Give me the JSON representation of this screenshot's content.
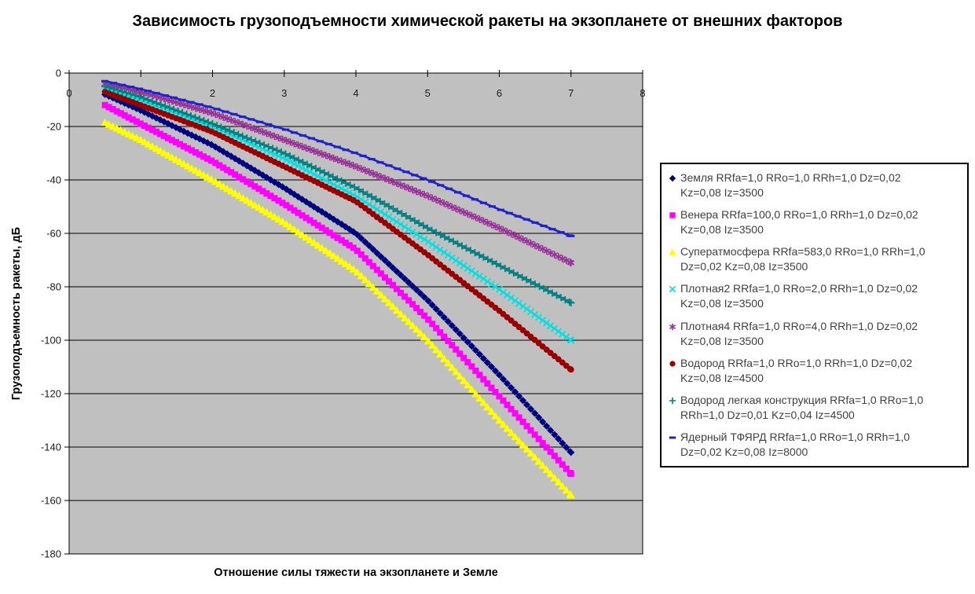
{
  "chart_data": {
    "type": "line",
    "title": "Зависимость грузоподъемности химической ракеты на экзопланете от внешних факторов",
    "xlabel": "Отношение силы тяжести на экзопланете и Земле",
    "ylabel": "Грузоподъемность ракеты, дБ",
    "xlim": [
      0,
      8
    ],
    "ylim": [
      -180,
      0
    ],
    "xticks": [
      0,
      1,
      2,
      3,
      4,
      5,
      6,
      7,
      8
    ],
    "yticks": [
      0,
      -20,
      -40,
      -60,
      -80,
      -100,
      -120,
      -140,
      -160,
      -180
    ],
    "grid": "horizontal",
    "plot_bg": "#c0c0c0",
    "legend_position": "right",
    "x": [
      0.5,
      1,
      2,
      3,
      4,
      5,
      6,
      7
    ],
    "series": [
      {
        "name": "Земля RRfa=1,0 RRo=1,0 RRh=1,0 Dz=0,02 Kz=0,08 Iz=3500",
        "lines": [
          "Земля RRfa=1,0 RRo=1,0 RRh=1,0 Dz=0,02",
          "Kz=0,08 Iz=3500"
        ],
        "color": "#000080",
        "marker": "diamond",
        "marker_step": 0.055,
        "values": [
          -8,
          -14,
          -27,
          -43,
          -60,
          -85,
          -113,
          -142
        ]
      },
      {
        "name": "Венера RRfa=100,0 RRo=1,0 RRh=1,0 Dz=0,02 Kz=0,08 Iz=3500",
        "lines": [
          "Венера RRfa=100,0 RRo=1,0 RRh=1,0 Dz=0,02",
          "Kz=0,08 Iz=3500"
        ],
        "color": "#ff00ff",
        "marker": "square",
        "marker_step": 0.055,
        "values": [
          -12,
          -19,
          -33,
          -49,
          -66,
          -92,
          -121,
          -150
        ]
      },
      {
        "name": "Суператмосфера RRfa=583,0 RRo=1,0 RRh=1,0 Dz=0,02 Kz=0,08 Iz=3500",
        "lines": [
          "Суператмосфера RRfa=583,0 RRo=1,0 RRh=1,0",
          "Dz=0,02 Kz=0,08 Iz=3500"
        ],
        "color": "#ffff00",
        "marker": "triangle",
        "marker_step": 0.055,
        "values": [
          -18.5,
          -25,
          -40,
          -56,
          -74,
          -100,
          -130,
          -158
        ]
      },
      {
        "name": "Плотная2 RRfa=1,0 RRo=2,0 RRh=1,0 Dz=0,02 Kz=0,08 Iz=3500",
        "lines": [
          "Плотная2 RRfa=1,0 RRo=2,0 RRh=1,0 Dz=0,02",
          "Kz=0,08 Iz=3500"
        ],
        "color": "#00e0e0",
        "marker": "x",
        "marker_step": 0.055,
        "values": [
          -6,
          -10,
          -20,
          -32,
          -46,
          -63,
          -81,
          -100
        ]
      },
      {
        "name": "Плотная4 RRfa=1,0 RRo=4,0 RRh=1,0 Dz=0,02 Kz=0,08 Iz=3500",
        "lines": [
          "Плотная4 RRfa=1,0 RRo=4,0 RRh=1,0 Dz=0,02",
          "Kz=0,08 Iz=3500"
        ],
        "color": "#993399",
        "marker": "star",
        "marker_step": 0.055,
        "values": [
          -4,
          -7,
          -15,
          -25,
          -35,
          -46,
          -58,
          -71
        ]
      },
      {
        "name": "Водород RRfa=1,0 RRo=1,0 RRh=1,0 Dz=0,02 Kz=0,08 Iz=4500",
        "lines": [
          "Водород RRfa=1,0 RRo=1,0 RRh=1,0 Dz=0,02",
          "Kz=0,08 Iz=4500"
        ],
        "color": "#990000",
        "marker": "circle",
        "marker_step": 0.055,
        "values": [
          -7,
          -12,
          -22,
          -35,
          -48,
          -68,
          -89,
          -111
        ]
      },
      {
        "name": "Водород легкая конструкция RRfa=1,0 RRo=1,0 RRh=1,0 Dz=0,01 Kz=0,04 Iz=4500",
        "lines": [
          "Водород легкая конструкция RRfa=1,0 RRo=1,0",
          "RRh=1,0 Dz=0,01 Kz=0,04 Iz=4500"
        ],
        "color": "#008080",
        "marker": "plus",
        "marker_step": 0.06,
        "values": [
          -5,
          -9,
          -19,
          -30,
          -43,
          -58,
          -72,
          -86
        ]
      },
      {
        "name": "Ядерный ТФЯРД  RRfa=1,0 RRo=1,0 RRh=1,0 Dz=0,02 Kz=0,08 Iz=8000",
        "lines": [
          "Ядерный ТФЯРД  RRfa=1,0 RRo=1,0 RRh=1,0",
          "Dz=0,02 Kz=0,08 Iz=8000"
        ],
        "color": "#2222cc",
        "marker": "dash",
        "marker_step": 0.12,
        "values": [
          -3,
          -6,
          -13,
          -21,
          -30,
          -40,
          -51,
          -61
        ]
      }
    ]
  }
}
